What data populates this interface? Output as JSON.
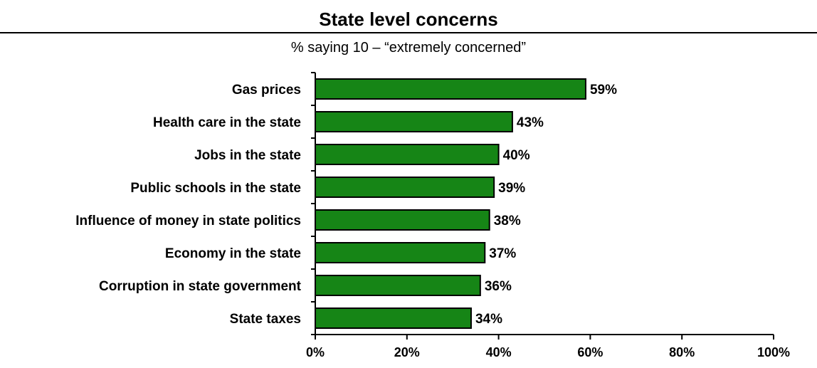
{
  "chart_data": {
    "type": "bar",
    "orientation": "horizontal",
    "title": "State level concerns",
    "subtitle": "% saying 10 – “extremely concerned”",
    "categories": [
      "Gas prices",
      "Health care in the state",
      "Jobs in the state",
      "Public schools in the state",
      "Influence of money in state politics",
      "Economy in the state",
      "Corruption in state government",
      "State taxes"
    ],
    "values": [
      59,
      43,
      40,
      39,
      38,
      37,
      36,
      34
    ],
    "data_labels": [
      "59%",
      "43%",
      "40%",
      "39%",
      "38%",
      "37%",
      "36%",
      "34%"
    ],
    "xlim": [
      0,
      100
    ],
    "xticks": [
      0,
      20,
      40,
      60,
      80,
      100
    ],
    "xtick_labels": [
      "0%",
      "20%",
      "40%",
      "60%",
      "80%",
      "100%"
    ],
    "xlabel": "",
    "ylabel": "",
    "grid": false,
    "bar_color": "#168516",
    "bar_edge_color": "#000000"
  }
}
